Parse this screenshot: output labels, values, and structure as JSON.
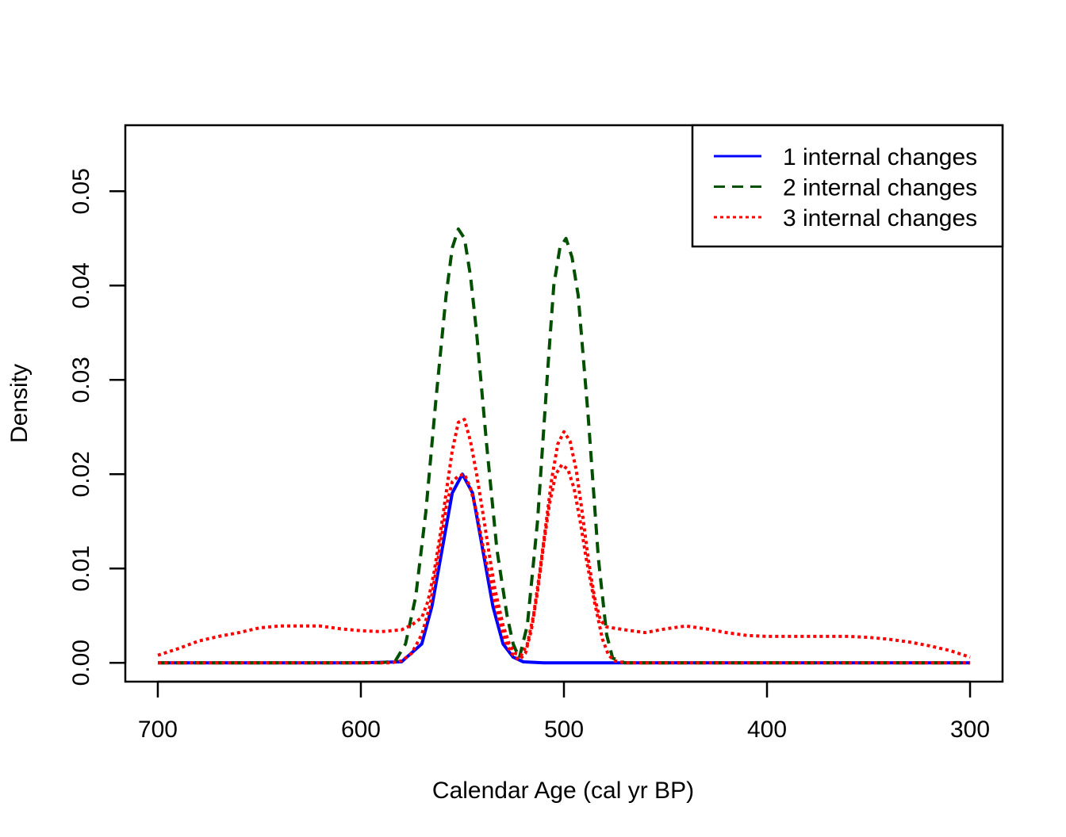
{
  "chart_data": {
    "type": "line",
    "title": "",
    "xlabel": "Calendar Age (cal yr BP)",
    "ylabel": "Density",
    "xlim": [
      716,
      284
    ],
    "ylim": [
      -0.002,
      0.057
    ],
    "x_reversed": true,
    "x_ticks": [
      700,
      600,
      500,
      400,
      300
    ],
    "y_ticks": [
      0.0,
      0.01,
      0.02,
      0.03,
      0.04,
      0.05
    ],
    "y_tick_labels": [
      "0.00",
      "0.01",
      "0.02",
      "0.03",
      "0.04",
      "0.05"
    ],
    "legend_position": "top-right",
    "grid": false,
    "series": [
      {
        "name": "1 internal changes",
        "color": "#0000ff",
        "dash": "solid",
        "x": [
          700,
          600,
          580,
          570,
          565,
          560,
          555,
          550,
          545,
          540,
          535,
          530,
          525,
          520,
          510,
          500,
          300
        ],
        "y": [
          0,
          0,
          0.0001,
          0.002,
          0.006,
          0.012,
          0.018,
          0.02,
          0.018,
          0.012,
          0.006,
          0.002,
          0.0006,
          0.0001,
          0,
          0,
          0
        ]
      },
      {
        "name": "2 internal changes",
        "color": "#005000",
        "dash": "dashed",
        "x": [
          700,
          590,
          583,
          578,
          573,
          568,
          563,
          558,
          555,
          552,
          549,
          546,
          543,
          538,
          533,
          528,
          525,
          522,
          518,
          513,
          508,
          505,
          502,
          499,
          496,
          493,
          488,
          483,
          479,
          476,
          470,
          300
        ],
        "y": [
          0,
          0,
          0.0002,
          0.002,
          0.007,
          0.016,
          0.028,
          0.039,
          0.044,
          0.046,
          0.045,
          0.041,
          0.035,
          0.023,
          0.012,
          0.005,
          0.002,
          0.0005,
          0.004,
          0.015,
          0.031,
          0.04,
          0.044,
          0.045,
          0.043,
          0.039,
          0.026,
          0.011,
          0.003,
          0.0005,
          0,
          0
        ]
      },
      {
        "name": "3 internal changes",
        "color": "#ff0000",
        "dash": "dotted",
        "x": [
          700,
          690,
          680,
          670,
          660,
          650,
          640,
          630,
          620,
          610,
          600,
          590,
          580,
          575,
          570,
          567,
          564,
          561,
          558,
          555,
          552,
          549,
          546,
          543,
          540,
          537,
          534,
          530,
          527,
          524,
          521,
          518,
          515,
          512,
          509,
          506,
          503,
          500,
          497,
          494,
          491,
          488,
          485,
          482,
          479,
          476,
          470,
          460,
          450,
          440,
          430,
          420,
          410,
          400,
          390,
          380,
          370,
          360,
          350,
          340,
          330,
          320,
          310,
          300
        ],
        "y": [
          0.0008,
          0.0015,
          0.0023,
          0.0028,
          0.0032,
          0.0037,
          0.0039,
          0.0039,
          0.0039,
          0.0036,
          0.0034,
          0.0033,
          0.0035,
          0.004,
          0.0048,
          0.0065,
          0.0095,
          0.0135,
          0.018,
          0.0225,
          0.0255,
          0.0258,
          0.0235,
          0.02,
          0.016,
          0.0118,
          0.0078,
          0.004,
          0.002,
          0.001,
          0.0008,
          0.002,
          0.005,
          0.0095,
          0.0145,
          0.0195,
          0.0232,
          0.0245,
          0.0235,
          0.0205,
          0.016,
          0.011,
          0.007,
          0.0045,
          0.0038,
          0.0037,
          0.0035,
          0.0032,
          0.0036,
          0.0039,
          0.0036,
          0.0032,
          0.0029,
          0.0028,
          0.0028,
          0.0028,
          0.0028,
          0.0028,
          0.0027,
          0.0025,
          0.0022,
          0.0018,
          0.0013,
          0.0006
        ]
      },
      {
        "name": "",
        "color": "#ff0000",
        "dash": "dotted",
        "x": [
          700,
          585,
          580,
          575,
          570,
          566,
          562,
          558,
          555,
          552,
          549,
          546,
          543,
          540,
          536,
          532,
          528,
          525,
          522,
          519,
          516,
          513,
          510,
          507,
          504,
          501,
          498,
          495,
          492,
          489,
          485,
          481,
          478,
          475,
          470,
          300
        ],
        "y": [
          0,
          0,
          0.0002,
          0.001,
          0.003,
          0.006,
          0.011,
          0.0165,
          0.0192,
          0.0198,
          0.02,
          0.0185,
          0.016,
          0.0125,
          0.0085,
          0.0045,
          0.0018,
          0.0008,
          0.0003,
          0.001,
          0.0035,
          0.0075,
          0.0125,
          0.017,
          0.02,
          0.021,
          0.0205,
          0.0185,
          0.015,
          0.011,
          0.0065,
          0.0025,
          0.0008,
          0.0002,
          0,
          0
        ]
      }
    ]
  }
}
